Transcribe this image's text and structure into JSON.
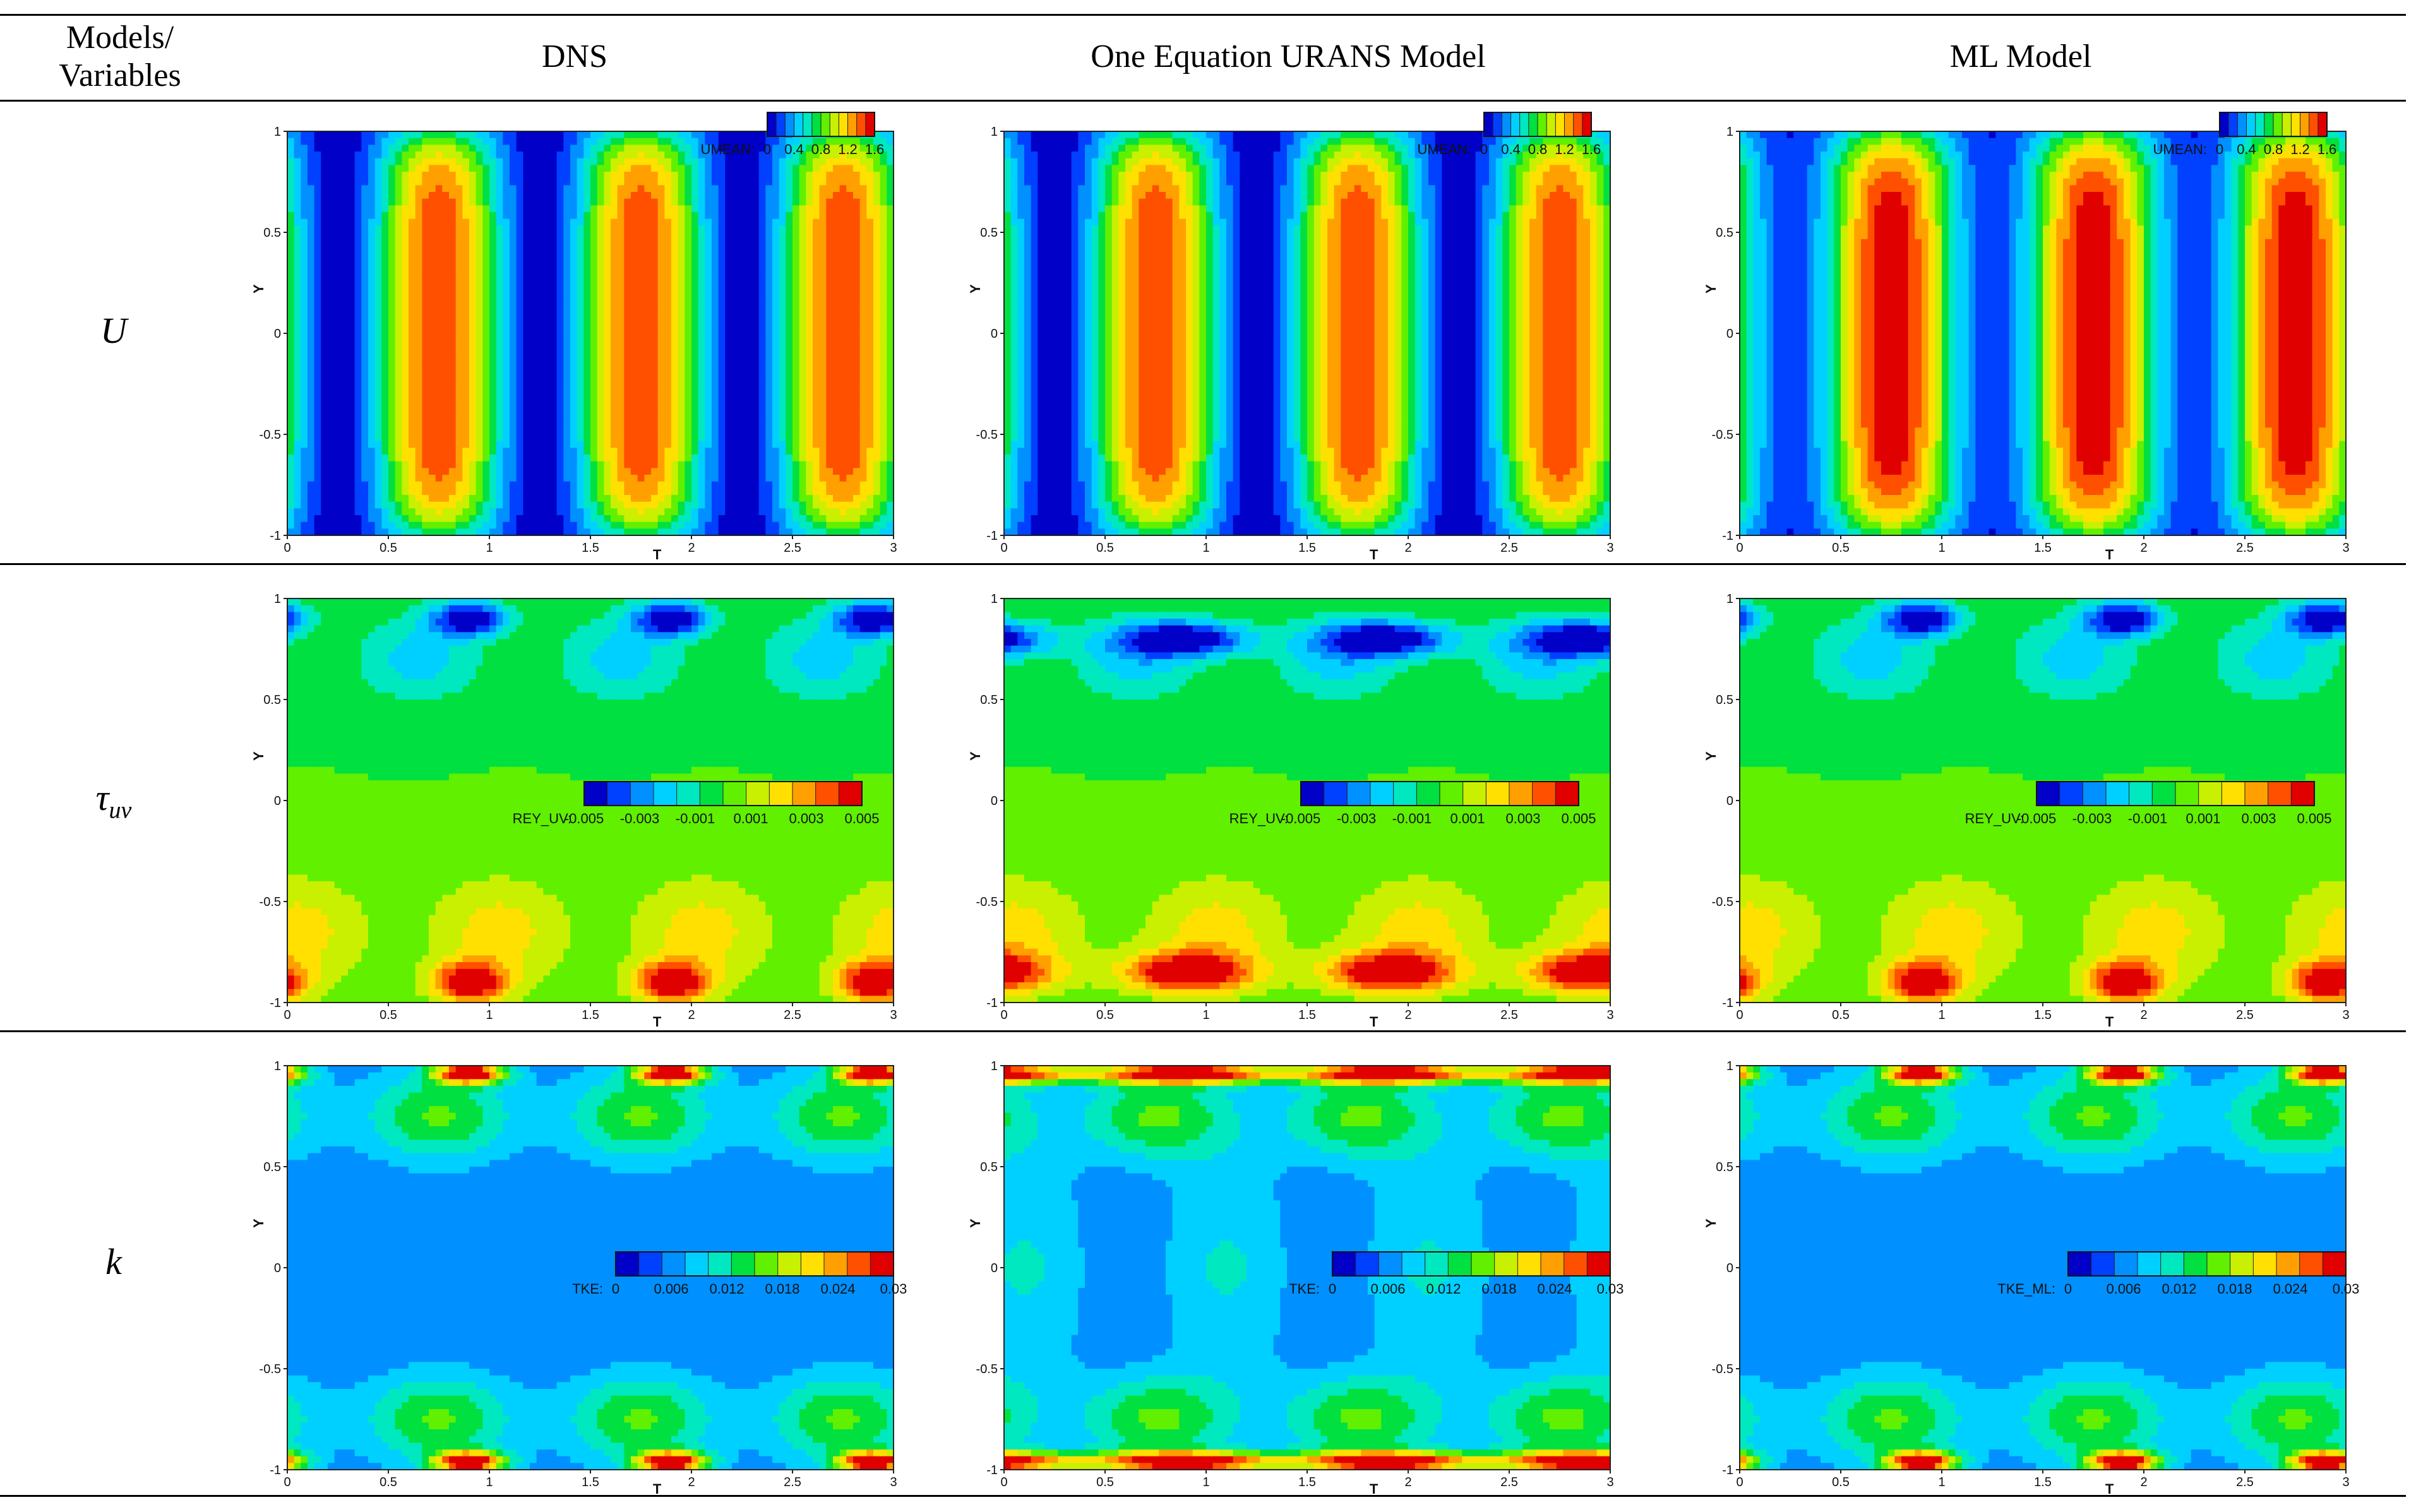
{
  "header": {
    "col0": [
      "Models/",
      "Variables"
    ],
    "columns": [
      "DNS",
      "One Equation URANS Model",
      "ML Model"
    ]
  },
  "rows": [
    {
      "label": "U",
      "sub": "",
      "variable": "UMEAN:",
      "cb_ticks": [
        "0",
        "0.4",
        "0.8",
        "1.2",
        "1.6"
      ]
    },
    {
      "label": "τ",
      "sub": "uv",
      "variable": "REY_UV:",
      "cb_ticks": [
        "-0.005",
        "-0.003",
        "-0.001",
        "0.001",
        "0.003",
        "0.005"
      ]
    },
    {
      "label": "k",
      "sub": "",
      "variable": "TKE:",
      "cb_ticks": [
        "0",
        "0.006",
        "0.012",
        "0.018",
        "0.024",
        "0.03"
      ]
    }
  ],
  "tke_ml_label": "TKE_ML:",
  "axes": {
    "xlabel": "T",
    "ylabel": "Y",
    "xticks": [
      "0",
      "0.5",
      "1",
      "1.5",
      "2",
      "2.5",
      "3"
    ],
    "yticks": [
      "1",
      "0.5",
      "0",
      "-0.5",
      "-1"
    ],
    "xlim": [
      0,
      3
    ],
    "ylim": [
      -1,
      1
    ]
  },
  "colormap": [
    "#0000c8",
    "#0040ff",
    "#0090ff",
    "#00d0ff",
    "#00e8c0",
    "#00e040",
    "#60f000",
    "#c8f000",
    "#ffe000",
    "#ffa000",
    "#ff5000",
    "#e00000"
  ]
}
